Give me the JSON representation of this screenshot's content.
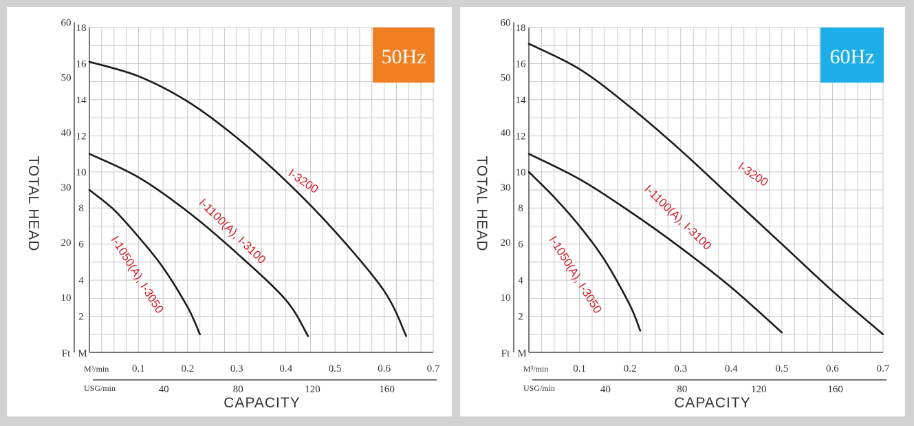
{
  "chart_data": [
    {
      "type": "line",
      "frequency_label": "50Hz",
      "badge_color": "#f07f22",
      "xlabel": "CAPACITY",
      "ylabel": "TOTAL HEAD",
      "x_unit_primary": "M³/min",
      "x_unit_secondary": "USG/min",
      "y_unit_ft": "Ft",
      "y_unit_m": "M",
      "x_ticks_m3min": [
        "0.1",
        "0.2",
        "0.3",
        "0.4",
        "0.5",
        "0.6",
        "0.7"
      ],
      "x_ticks_usgmin": [
        "40",
        "80",
        "120",
        "160"
      ],
      "y_ticks_m": [
        "2",
        "4",
        "6",
        "8",
        "10",
        "12",
        "14",
        "16",
        "18"
      ],
      "y_ticks_ft": [
        "10",
        "20",
        "30",
        "40",
        "50",
        "60"
      ],
      "xlim": [
        0,
        0.7
      ],
      "ylim": [
        0,
        18
      ],
      "grid": true,
      "series": [
        {
          "name": "I-3200",
          "x": [
            0,
            0.1,
            0.2,
            0.3,
            0.4,
            0.5,
            0.6,
            0.645
          ],
          "y": [
            16.1,
            15.3,
            13.9,
            11.9,
            9.5,
            6.7,
            3.4,
            0.9
          ]
        },
        {
          "name": "I-1100(A), I-3100",
          "x": [
            0,
            0.1,
            0.2,
            0.3,
            0.4,
            0.445
          ],
          "y": [
            11.0,
            9.7,
            7.8,
            5.5,
            2.9,
            0.9
          ]
        },
        {
          "name": "I-1050(A), I-3050",
          "x": [
            0,
            0.05,
            0.1,
            0.15,
            0.2,
            0.225
          ],
          "y": [
            9.0,
            7.9,
            6.4,
            4.7,
            2.5,
            1.0
          ]
        }
      ],
      "labels": [
        "I-3200",
        "I-1100(A), I-3100",
        "I-1050(A), I-3050"
      ]
    },
    {
      "type": "line",
      "frequency_label": "60Hz",
      "badge_color": "#1daee9",
      "xlabel": "CAPACITY",
      "ylabel": "TOTAL HEAD",
      "x_unit_primary": "M³/min",
      "x_unit_secondary": "USG/min",
      "y_unit_ft": "Ft",
      "y_unit_m": "M",
      "x_ticks_m3min": [
        "0.1",
        "0.2",
        "0.3",
        "0.4",
        "0.5",
        "0.6",
        "0.7"
      ],
      "x_ticks_usgmin": [
        "40",
        "80",
        "120",
        "160"
      ],
      "y_ticks_m": [
        "2",
        "4",
        "6",
        "8",
        "10",
        "12",
        "14",
        "16",
        "18"
      ],
      "y_ticks_ft": [
        "10",
        "20",
        "30",
        "40",
        "50",
        "60"
      ],
      "xlim": [
        0,
        0.7
      ],
      "ylim": [
        0,
        18
      ],
      "grid": true,
      "series": [
        {
          "name": "I-3200",
          "x": [
            0,
            0.1,
            0.2,
            0.3,
            0.4,
            0.5,
            0.6,
            0.7
          ],
          "y": [
            17.1,
            15.7,
            13.6,
            11.2,
            8.6,
            6.0,
            3.4,
            1.0
          ]
        },
        {
          "name": "I-1100(A), I-3100",
          "x": [
            0,
            0.1,
            0.2,
            0.3,
            0.4,
            0.5
          ],
          "y": [
            11.0,
            9.6,
            7.8,
            5.8,
            3.6,
            1.1
          ]
        },
        {
          "name": "I-1050(A), I-3050",
          "x": [
            0,
            0.05,
            0.1,
            0.15,
            0.2,
            0.22
          ],
          "y": [
            10.0,
            8.6,
            7.0,
            5.1,
            2.6,
            1.2
          ]
        }
      ],
      "labels": [
        "I-3200",
        "I-1100(A), I-3100",
        "I-1050(A), I-3050"
      ]
    }
  ]
}
